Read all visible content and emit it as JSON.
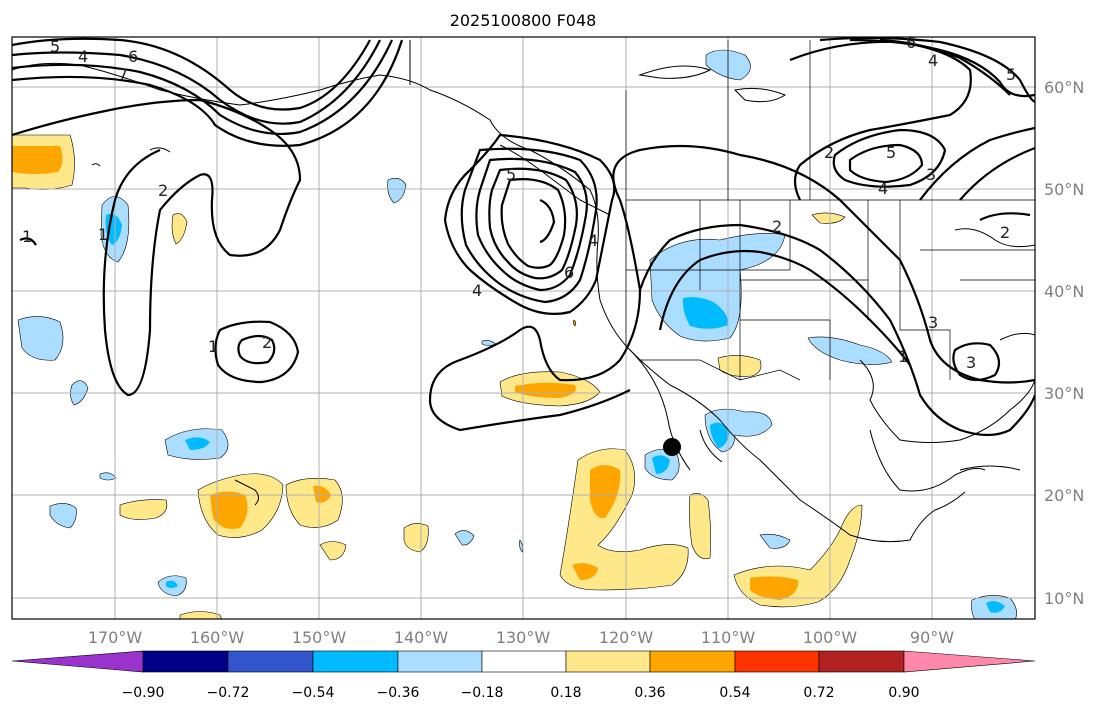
{
  "title": "2025100800 F048",
  "colors": {
    "neg_090_below": "#9933cc",
    "neg_090_072": "#000088",
    "neg_072_054": "#3355cc",
    "neg_054_036": "#00bbff",
    "neg_036_018": "#aaddff",
    "neutral": "#ffffff",
    "pos_018_036": "#ffe88a",
    "pos_036_054": "#ffa500",
    "pos_054_072": "#ff3300",
    "pos_072_090": "#b22222",
    "pos_090_above": "#ff88aa"
  },
  "lon_labels": [
    "170°W",
    "160°W",
    "150°W",
    "140°W",
    "130°W",
    "120°W",
    "110°W",
    "100°W",
    "90°W"
  ],
  "lat_labels": [
    "60°N",
    "50°N",
    "40°N",
    "30°N",
    "20°N",
    "10°N"
  ],
  "colorbar": {
    "ticks": [
      "−0.90",
      "−0.72",
      "−0.54",
      "−0.36",
      "−0.18",
      "0.18",
      "0.36",
      "0.54",
      "0.72",
      "0.90"
    ]
  },
  "contour_labels": [
    "5",
    "4",
    "6",
    "7",
    "2",
    "1",
    "1",
    "2",
    "1",
    "2",
    "5",
    "4",
    "6",
    "4",
    "3",
    "2",
    "6",
    "4",
    "5",
    "5",
    "4",
    "3",
    "2",
    "1",
    "3"
  ],
  "marker": "black-dot"
}
